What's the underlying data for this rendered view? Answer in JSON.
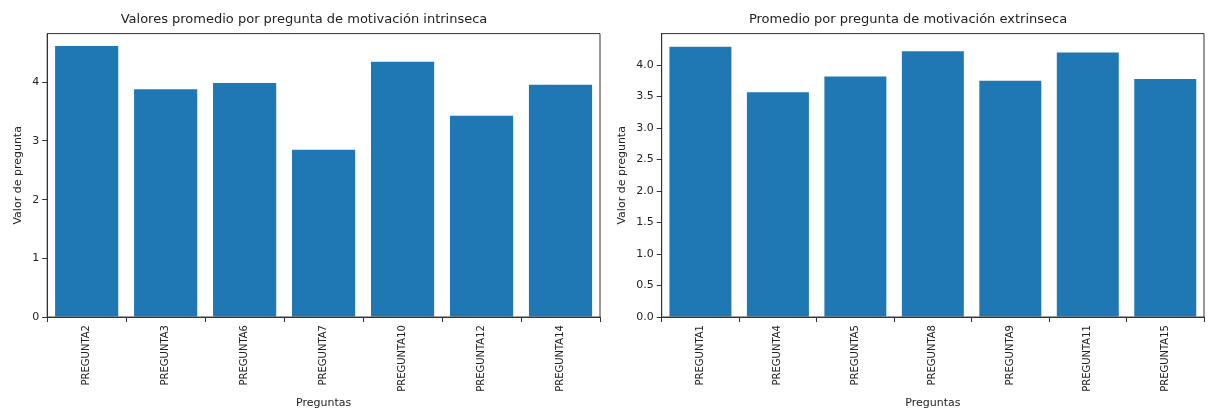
{
  "chart_data": [
    {
      "type": "bar",
      "title": "Valores promedio por pregunta de motivación intrinseca",
      "xlabel": "Preguntas",
      "ylabel": "Valor de pregunta",
      "categories": [
        "PREGUNTA2",
        "PREGUNTA3",
        "PREGUNTA6",
        "PREGUNTA7",
        "PREGUNTA10",
        "PREGUNTA12",
        "PREGUNTA14"
      ],
      "values": [
        4.62,
        3.88,
        3.99,
        2.85,
        4.35,
        3.43,
        3.96
      ],
      "color": "#1f77b4",
      "ylim": [
        0,
        4.83
      ],
      "yticks": [
        0,
        1,
        2,
        3,
        4
      ],
      "grid": false,
      "legend": false
    },
    {
      "type": "bar",
      "title": "Promedio por pregunta de motivación extrinseca",
      "xlabel": "Preguntas",
      "ylabel": "Valor de pregunta",
      "categories": [
        "PREGUNTA1",
        "PREGUNTA4",
        "PREGUNTA5",
        "PREGUNTA8",
        "PREGUNTA9",
        "PREGUNTA11",
        "PREGUNTA15"
      ],
      "values": [
        4.29,
        3.57,
        3.82,
        4.22,
        3.75,
        4.2,
        3.78
      ],
      "color": "#1f77b4",
      "ylim": [
        0,
        4.5
      ],
      "yticks": [
        {
          "value": 0,
          "label": "0.0"
        },
        {
          "value": 0.5,
          "label": "0.5"
        },
        {
          "value": 1,
          "label": "1.0"
        },
        {
          "value": 1.5,
          "label": "1.5"
        },
        {
          "value": 2,
          "label": "2.0"
        },
        {
          "value": 2.5,
          "label": "2.5"
        },
        {
          "value": 3,
          "label": "3.0"
        },
        {
          "value": 3.5,
          "label": "3.5"
        },
        {
          "value": 4,
          "label": "4.0"
        }
      ],
      "grid": false,
      "legend": false
    }
  ]
}
